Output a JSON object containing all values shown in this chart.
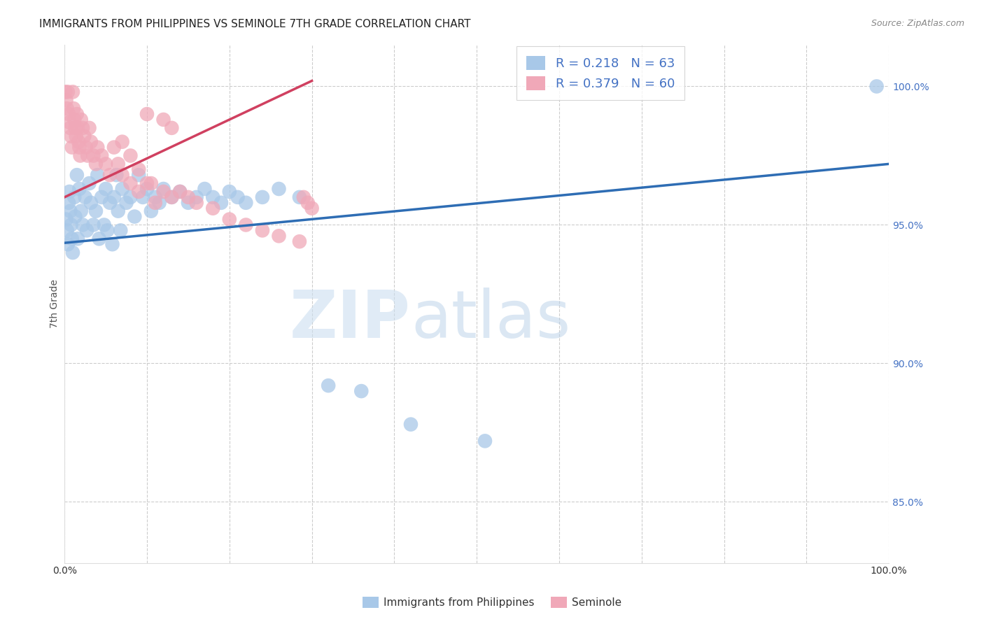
{
  "title": "IMMIGRANTS FROM PHILIPPINES VS SEMINOLE 7TH GRADE CORRELATION CHART",
  "source": "Source: ZipAtlas.com",
  "ylabel": "7th Grade",
  "legend_label1": "Immigrants from Philippines",
  "legend_label2": "Seminole",
  "R1": 0.218,
  "N1": 63,
  "R2": 0.379,
  "N2": 60,
  "color_blue": "#A8C8E8",
  "color_pink": "#F0A8B8",
  "color_blue_line": "#2E6DB4",
  "color_pink_line": "#D04060",
  "color_text_blue": "#4472C4",
  "xlim": [
    0.0,
    1.0
  ],
  "ylim": [
    0.828,
    1.015
  ],
  "y_ticks": [
    0.85,
    0.9,
    0.95,
    1.0
  ],
  "blue_line_x0": 0.0,
  "blue_line_x1": 1.0,
  "blue_line_y0": 0.9435,
  "blue_line_y1": 0.972,
  "pink_line_x0": 0.0,
  "pink_line_x1": 0.3,
  "pink_line_y0": 0.96,
  "pink_line_y1": 1.002,
  "blue_dots_x": [
    0.002,
    0.003,
    0.004,
    0.005,
    0.006,
    0.007,
    0.008,
    0.009,
    0.01,
    0.012,
    0.013,
    0.015,
    0.016,
    0.018,
    0.02,
    0.022,
    0.025,
    0.027,
    0.03,
    0.032,
    0.035,
    0.038,
    0.04,
    0.042,
    0.045,
    0.048,
    0.05,
    0.052,
    0.055,
    0.058,
    0.06,
    0.063,
    0.065,
    0.068,
    0.07,
    0.075,
    0.08,
    0.085,
    0.09,
    0.095,
    0.1,
    0.105,
    0.11,
    0.115,
    0.12,
    0.13,
    0.14,
    0.15,
    0.16,
    0.17,
    0.18,
    0.19,
    0.2,
    0.21,
    0.22,
    0.24,
    0.26,
    0.285,
    0.32,
    0.36,
    0.42,
    0.51,
    0.985
  ],
  "blue_dots_y": [
    0.952,
    0.948,
    0.943,
    0.958,
    0.962,
    0.955,
    0.95,
    0.945,
    0.94,
    0.96,
    0.953,
    0.968,
    0.945,
    0.963,
    0.955,
    0.95,
    0.96,
    0.948,
    0.965,
    0.958,
    0.95,
    0.955,
    0.968,
    0.945,
    0.96,
    0.95,
    0.963,
    0.948,
    0.958,
    0.943,
    0.96,
    0.968,
    0.955,
    0.948,
    0.963,
    0.958,
    0.96,
    0.953,
    0.968,
    0.96,
    0.963,
    0.955,
    0.96,
    0.958,
    0.963,
    0.96,
    0.962,
    0.958,
    0.96,
    0.963,
    0.96,
    0.958,
    0.962,
    0.96,
    0.958,
    0.96,
    0.963,
    0.96,
    0.892,
    0.89,
    0.878,
    0.872,
    1.0
  ],
  "pink_dots_x": [
    0.001,
    0.002,
    0.003,
    0.004,
    0.005,
    0.006,
    0.007,
    0.008,
    0.009,
    0.01,
    0.011,
    0.012,
    0.013,
    0.014,
    0.015,
    0.016,
    0.017,
    0.018,
    0.019,
    0.02,
    0.022,
    0.024,
    0.026,
    0.028,
    0.03,
    0.032,
    0.035,
    0.038,
    0.04,
    0.045,
    0.05,
    0.055,
    0.06,
    0.065,
    0.07,
    0.08,
    0.09,
    0.1,
    0.11,
    0.12,
    0.13,
    0.14,
    0.15,
    0.16,
    0.18,
    0.2,
    0.22,
    0.24,
    0.26,
    0.285,
    0.29,
    0.295,
    0.3,
    0.1,
    0.12,
    0.13,
    0.07,
    0.08,
    0.09,
    0.105
  ],
  "pink_dots_y": [
    0.998,
    0.995,
    0.992,
    0.998,
    0.99,
    0.987,
    0.985,
    0.982,
    0.978,
    0.998,
    0.992,
    0.988,
    0.985,
    0.982,
    0.99,
    0.985,
    0.98,
    0.978,
    0.975,
    0.988,
    0.985,
    0.982,
    0.978,
    0.975,
    0.985,
    0.98,
    0.975,
    0.972,
    0.978,
    0.975,
    0.972,
    0.968,
    0.978,
    0.972,
    0.968,
    0.965,
    0.962,
    0.965,
    0.958,
    0.962,
    0.96,
    0.962,
    0.96,
    0.958,
    0.956,
    0.952,
    0.95,
    0.948,
    0.946,
    0.944,
    0.96,
    0.958,
    0.956,
    0.99,
    0.988,
    0.985,
    0.98,
    0.975,
    0.97,
    0.965
  ],
  "watermark_zip": "ZIP",
  "watermark_atlas": "atlas",
  "background_color": "#ffffff",
  "grid_color": "#cccccc"
}
